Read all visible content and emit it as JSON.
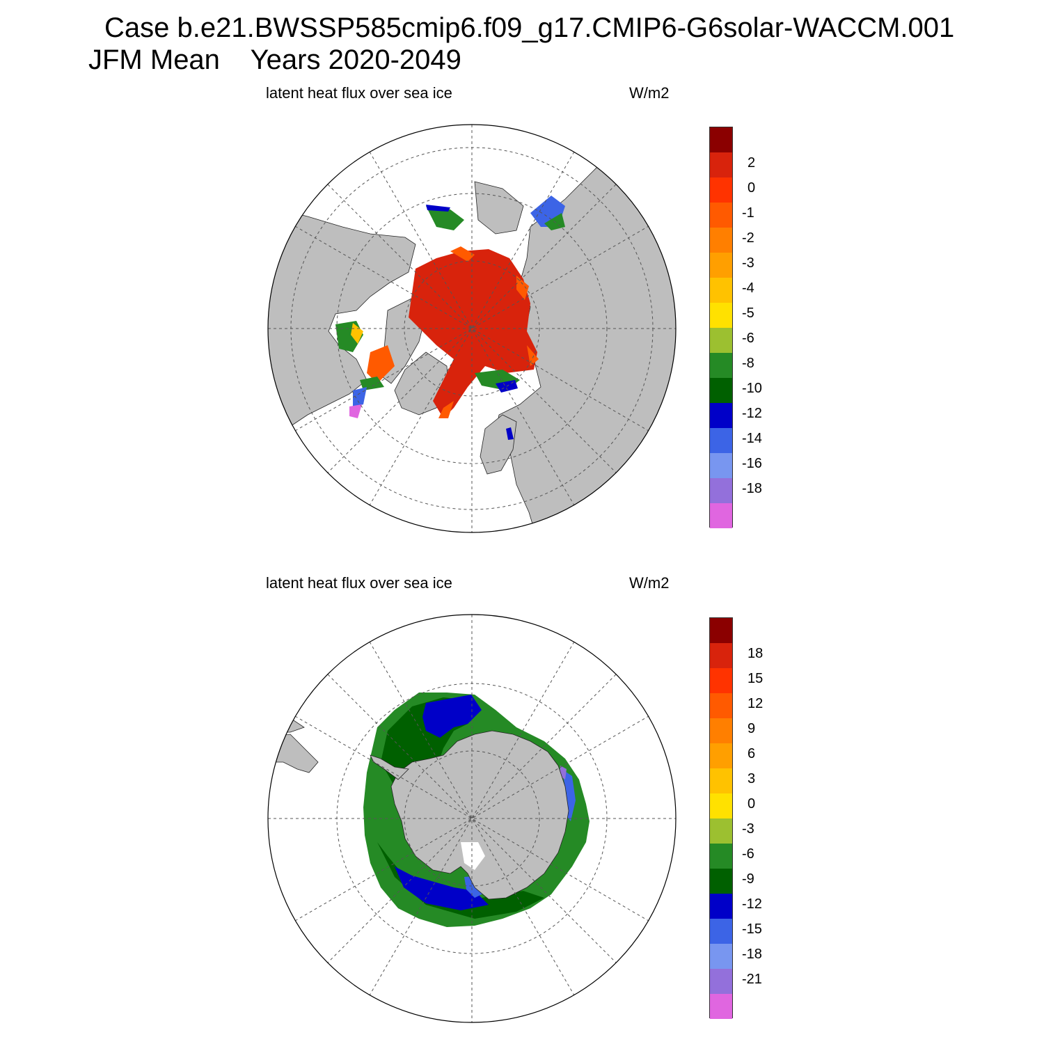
{
  "title": {
    "line1": "Case b.e21.BWSSP585cmip6.f09_g17.CMIP6-G6solar-WACCM.001",
    "line2_left": "JFM Mean",
    "line2_right": "Years 2020-2049"
  },
  "panels": [
    {
      "hemisphere": "north",
      "subtitle": "latent heat flux over sea ice",
      "units": "W/m2",
      "colorbar": {
        "colors": [
          "#8b0000",
          "#d8230c",
          "#ff3300",
          "#ff5a00",
          "#ff7f00",
          "#ff9f00",
          "#ffc200",
          "#ffe100",
          "#9cc030",
          "#258a25",
          "#006000",
          "#0000c8",
          "#3c64e6",
          "#7896f0",
          "#9370db",
          "#e066e0"
        ],
        "labels": [
          "2",
          "0",
          "-1",
          "-2",
          "-3",
          "-4",
          "-5",
          "-6",
          "-8",
          "-10",
          "-12",
          "-14",
          "-16",
          "-18"
        ]
      }
    },
    {
      "hemisphere": "south",
      "subtitle": "latent heat flux over sea ice",
      "units": "W/m2",
      "colorbar": {
        "colors": [
          "#8b0000",
          "#d8230c",
          "#ff3300",
          "#ff5a00",
          "#ff7f00",
          "#ff9f00",
          "#ffc200",
          "#ffe100",
          "#9cc030",
          "#258a25",
          "#006000",
          "#0000c8",
          "#3c64e6",
          "#7896f0",
          "#9370db",
          "#e066e0"
        ],
        "labels": [
          "18",
          "15",
          "12",
          "9",
          "6",
          "3",
          "0",
          "-3",
          "-6",
          "-9",
          "-12",
          "-15",
          "-18",
          "-21"
        ]
      }
    }
  ],
  "colors": {
    "land": "#bebebe",
    "ocean": "#ffffff",
    "grid": "#555555"
  }
}
